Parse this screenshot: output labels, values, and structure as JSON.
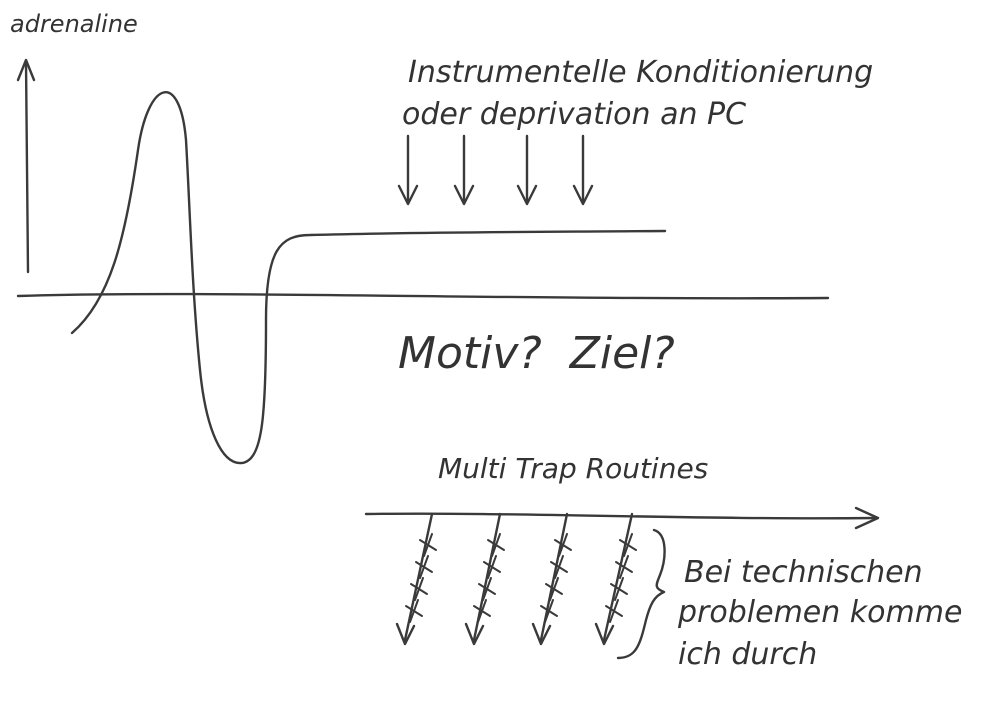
{
  "ink_color": "#3a3a3a",
  "background_color": "#ffffff",
  "labels": {
    "y_axis": "adrenaline",
    "conditioning_line1": "Instrumentelle Konditionierung",
    "conditioning_line2": "oder deprivation an PC",
    "questions": "Motiv?  Ziel?",
    "routines": "Multi Trap Routines",
    "technical_line1": "Bei technischen",
    "technical_line2": "problemen komme",
    "technical_line3": "ich durch"
  }
}
